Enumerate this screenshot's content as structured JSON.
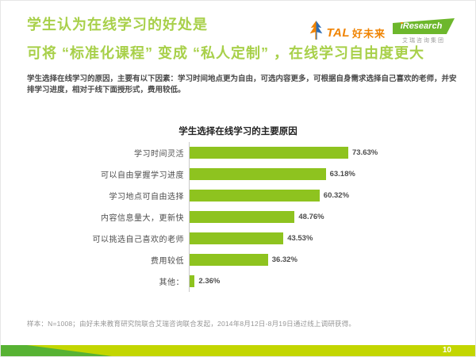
{
  "page": {
    "title_line1": "学生认为在线学习的好处是",
    "title_line2": "可将 “标准化课程” 变成 “私人定制” ，在线学习自由度更大",
    "body": "学生选择在线学习的原因，主要有以下因素：学习时间地点更为自由，可选内容更多，可根据自身需求选择自己喜欢的老师，并安排学习进度，相对于线下面授形式，费用较低。",
    "footnote": "样本：N=1008；由好未来教育研究院联合艾瑞咨询联合发起，2014年8月12日-8月19日通过线上调研获得。",
    "page_number": "10"
  },
  "logos": {
    "tal_text": "TAL",
    "tal_cn": "好未来",
    "iresearch_i": "i",
    "iresearch_rest": "Research",
    "iresearch_cn": "艾瑞咨询集团"
  },
  "colors": {
    "title_green": "#a8d04a",
    "bar_green": "#8ec31f",
    "footer_light_green": "#c3d600",
    "footer_dark_green": "#57b233",
    "logo_orange": "#f08300",
    "logo_blue": "#2e6db4",
    "iresearch_green": "#6db72c"
  },
  "chart_data": {
    "type": "bar",
    "orientation": "horizontal",
    "title": "学生选择在线学习的主要原因",
    "categories": [
      "学习时间灵活",
      "可以自由掌握学习进度",
      "学习地点可自由选择",
      "内容信息量大，更新快",
      "可以挑选自己喜欢的老师",
      "费用较低",
      "其他："
    ],
    "values": [
      73.63,
      63.18,
      60.32,
      48.76,
      43.53,
      36.32,
      2.36
    ],
    "value_labels": [
      "73.63%",
      "63.18%",
      "60.32%",
      "48.76%",
      "43.53%",
      "36.32%",
      "2.36%"
    ],
    "unit": "%",
    "xlim": [
      0,
      80
    ],
    "grid": false,
    "legend": false,
    "bar_color": "#8ec31f"
  }
}
